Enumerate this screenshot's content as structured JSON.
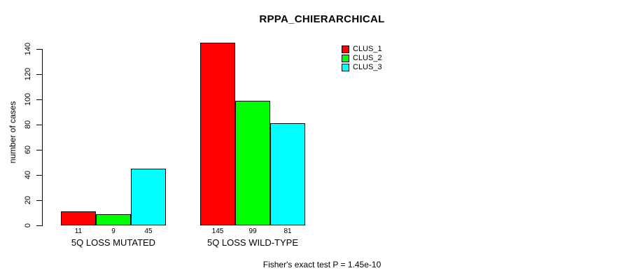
{
  "chart_data": {
    "type": "bar",
    "title": "RPPA_CHIERARCHICAL",
    "ylabel": "number of cases",
    "xlabel": "",
    "groups": [
      "5Q LOSS MUTATED",
      "5Q LOSS WILD-TYPE"
    ],
    "series": [
      {
        "name": "CLUS_1",
        "color": "#ff0000",
        "values": [
          11,
          145
        ]
      },
      {
        "name": "CLUS_2",
        "color": "#00ff00",
        "values": [
          9,
          99
        ]
      },
      {
        "name": "CLUS_3",
        "color": "#00ffff",
        "values": [
          45,
          81
        ]
      }
    ],
    "bar_value_labels": [
      [
        11,
        9,
        45
      ],
      [
        145,
        99,
        81
      ]
    ],
    "yticks": [
      0,
      20,
      40,
      60,
      80,
      100,
      120,
      140
    ],
    "ylim": [
      0,
      145
    ],
    "grid": false,
    "legend_position": "top-right",
    "bar_border_color": "#000000",
    "annotation": "Fisher's exact test P = 1.45e-10"
  }
}
